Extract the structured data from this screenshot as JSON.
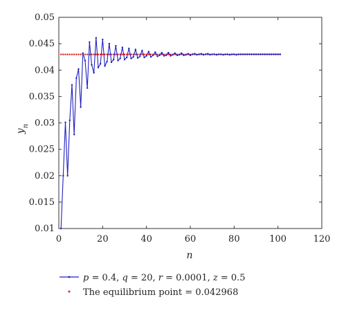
{
  "chart_data": {
    "type": "line",
    "xlabel": "n",
    "ylabel": "y_n",
    "xlim": [
      0,
      120
    ],
    "ylim": [
      0.01,
      0.05
    ],
    "x_ticks": [
      "0",
      "20",
      "40",
      "60",
      "80",
      "100",
      "120"
    ],
    "y_ticks": [
      "0.01",
      "0.015",
      "0.02",
      "0.025",
      "0.03",
      "0.035",
      "0.04",
      "0.045",
      "0.05"
    ],
    "grid": false,
    "legend_position": "bottom",
    "series": [
      {
        "name": "p = 0.4, q = 20, r = 0.0001, z = 0.5",
        "color": "#1f1fbf",
        "marker": "dot",
        "x": [
          1,
          2,
          3,
          4,
          5,
          6,
          7,
          8,
          9,
          10,
          11,
          12,
          13,
          14,
          15,
          16,
          17,
          18,
          19,
          20,
          21,
          22,
          23,
          24,
          25,
          26,
          27,
          28,
          29,
          30,
          31,
          32,
          33,
          34,
          35,
          36,
          37,
          38,
          39,
          40,
          41,
          42,
          43,
          44,
          45,
          46,
          47,
          48,
          49,
          50,
          51,
          52,
          53,
          54,
          55,
          56,
          57,
          58,
          59,
          60,
          61,
          62,
          63,
          64,
          65,
          66,
          67,
          68,
          69,
          70,
          71,
          72,
          73,
          74,
          75,
          76,
          77,
          78,
          79,
          80,
          81,
          82,
          83,
          84,
          85,
          86,
          87,
          88,
          89,
          90,
          91,
          92,
          93,
          94,
          95,
          96,
          97,
          98,
          99,
          100,
          101
        ],
        "values": [
          0.01,
          0.02,
          0.0301,
          0.02,
          0.0305,
          0.0372,
          0.0278,
          0.0385,
          0.0402,
          0.033,
          0.0432,
          0.0418,
          0.0366,
          0.0453,
          0.041,
          0.0395,
          0.0461,
          0.0405,
          0.0412,
          0.0458,
          0.0408,
          0.0416,
          0.045,
          0.0415,
          0.042,
          0.0446,
          0.0418,
          0.0422,
          0.0443,
          0.042,
          0.0424,
          0.0441,
          0.0422,
          0.0425,
          0.0439,
          0.0423,
          0.0426,
          0.0437,
          0.0424,
          0.0427,
          0.0435,
          0.0425,
          0.0428,
          0.0434,
          0.0426,
          0.0428,
          0.0433,
          0.0427,
          0.0428,
          0.0433,
          0.0427,
          0.0429,
          0.0432,
          0.0428,
          0.0429,
          0.0432,
          0.0428,
          0.0429,
          0.0431,
          0.0428,
          0.043,
          0.0431,
          0.0429,
          0.043,
          0.0431,
          0.0429,
          0.043,
          0.0431,
          0.0429,
          0.043,
          0.043,
          0.0429,
          0.043,
          0.043,
          0.0429,
          0.043,
          0.043,
          0.0429,
          0.043,
          0.043,
          0.0429,
          0.043,
          0.043,
          0.043,
          0.043,
          0.043,
          0.043,
          0.043,
          0.043,
          0.043,
          0.043,
          0.043,
          0.043,
          0.043,
          0.043,
          0.043,
          0.043,
          0.043,
          0.043,
          0.043,
          0.043
        ]
      },
      {
        "name": "The equilibrium point = 0.042968",
        "color": "#e02020",
        "marker": "dot",
        "y": 0.042968,
        "x_range": [
          1,
          101
        ]
      }
    ]
  },
  "legend": {
    "series_1_parts": [
      "p",
      " = 0.4, ",
      "q",
      " = 20, ",
      "r",
      " = 0.0001, ",
      "z",
      " = 0.5"
    ],
    "series_2_label": "The equilibrium point = 0.042968"
  }
}
